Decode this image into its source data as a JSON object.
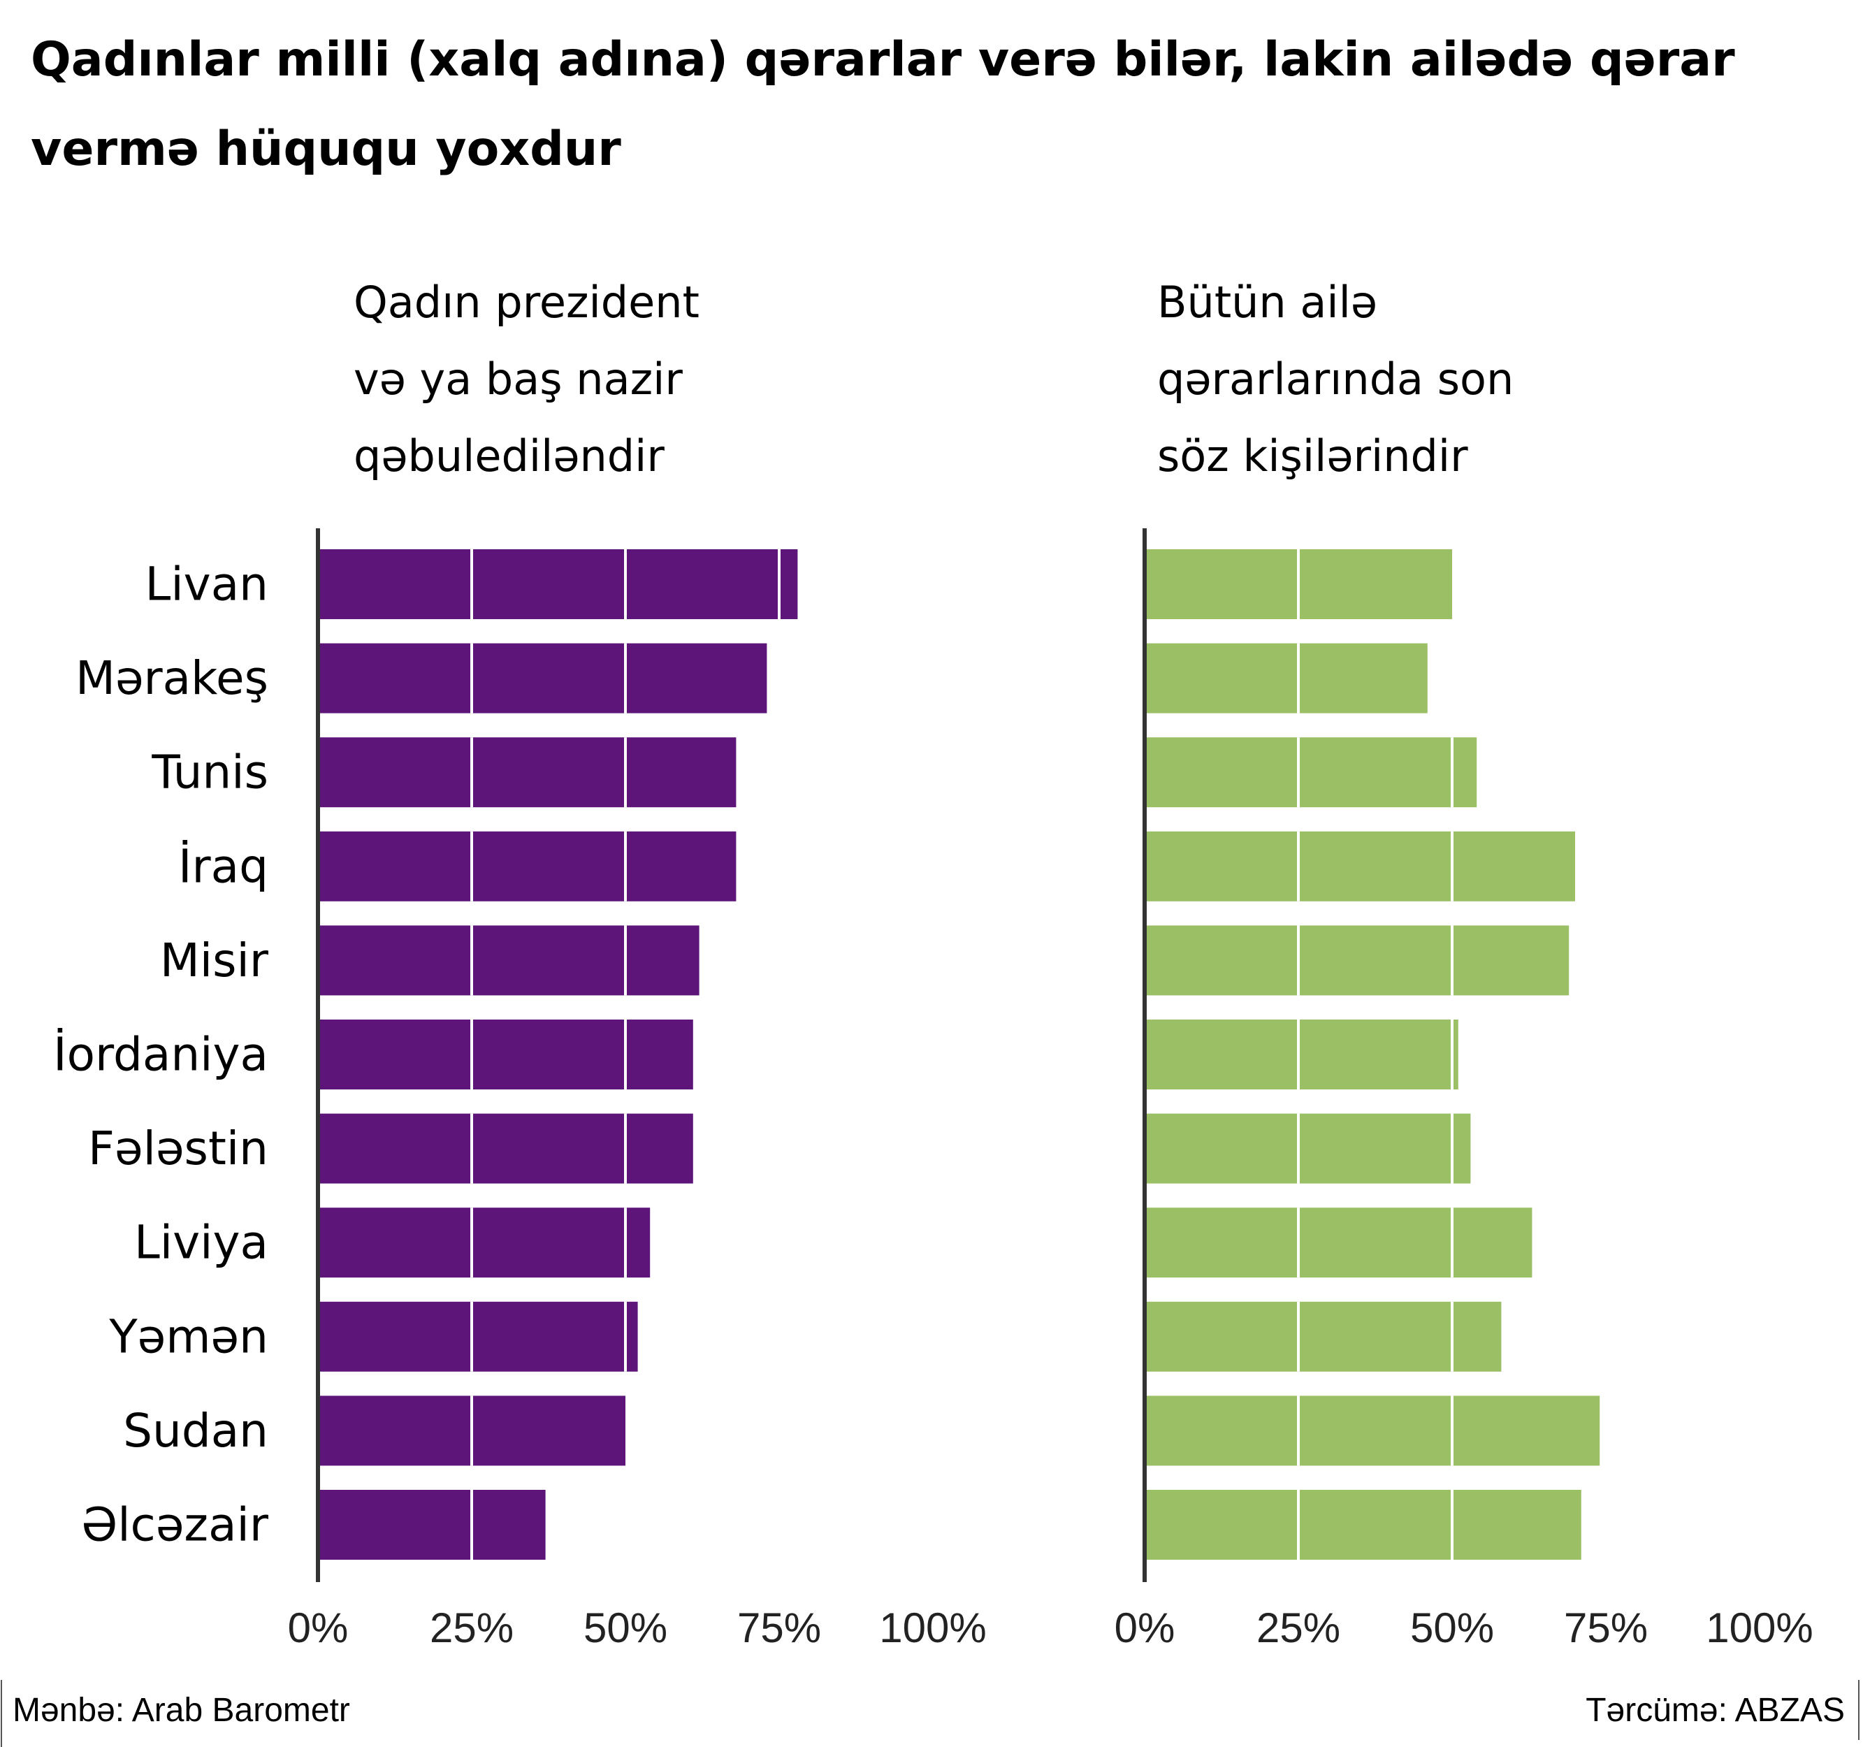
{
  "title": "Qadınlar milli (xalq adına) qərarlar verə bilər, lakin ailədə qərar vermə hüququ yoxdur",
  "source_text": "Mənbə: Arab Barometr",
  "credit_text": "Tərcümə: ABZAS",
  "colors": {
    "left_bars": "#5e1579",
    "right_bars": "#9bbf65",
    "axis": "#333333",
    "gridline_on_bar": "#ffffff"
  },
  "chart_data": [
    {
      "type": "bar",
      "orientation": "horizontal",
      "title": "Qadın prezident\nvə ya baş nazir\nqəbuledilәndir",
      "categories": [
        "Livan",
        "Mərakeş",
        "Tunis",
        "İraq",
        "Misir",
        "İordaniya",
        "Fələstin",
        "Liviya",
        "Yəmən",
        "Sudan",
        "Əlcəzair"
      ],
      "values": [
        78,
        73,
        68,
        68,
        62,
        61,
        61,
        54,
        52,
        50,
        37
      ],
      "xlim": [
        0,
        100
      ],
      "xticks": [
        0,
        25,
        50,
        75,
        100
      ],
      "xtick_labels": [
        "0%",
        "25%",
        "50%",
        "75%",
        "100%"
      ],
      "grid": "vertical white lines drawn over bars at 25%, 50%, 75%",
      "color": "#5e1579"
    },
    {
      "type": "bar",
      "orientation": "horizontal",
      "title": "Bütün ailə\nqərarlarında son\nsöz kişilərindir",
      "categories": [
        "Livan",
        "Mərakeş",
        "Tunis",
        "İraq",
        "Misir",
        "İordaniya",
        "Fələstin",
        "Liviya",
        "Yəmən",
        "Sudan",
        "Əlcəzair"
      ],
      "values": [
        50,
        46,
        54,
        70,
        69,
        51,
        53,
        63,
        58,
        74,
        71
      ],
      "xlim": [
        0,
        100
      ],
      "xticks": [
        0,
        25,
        50,
        75,
        100
      ],
      "xtick_labels": [
        "0%",
        "25%",
        "50%",
        "75%",
        "100%"
      ],
      "grid": "vertical white lines drawn over bars at 25%, 50%, 75%",
      "color": "#9bbf65"
    }
  ]
}
